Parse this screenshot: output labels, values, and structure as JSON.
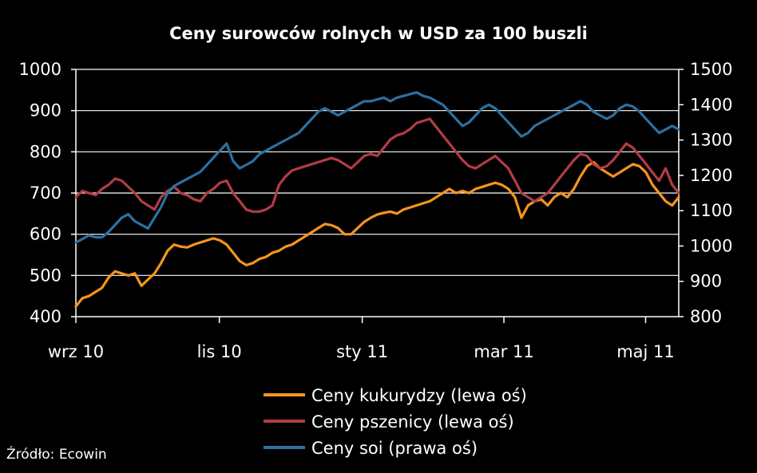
{
  "chart_data": {
    "type": "line",
    "title": "Ceny surowców rolnych w USD za 100 buszli",
    "x_ticks": [
      "wrz 10",
      "lis 10",
      "sty 11",
      "mar 11",
      "maj 11"
    ],
    "left_ylim": [
      400,
      1000
    ],
    "left_yticks": [
      "1000",
      "900",
      "800",
      "700",
      "600",
      "500",
      "400"
    ],
    "right_ylim": [
      800,
      1500
    ],
    "right_yticks": [
      "1500",
      "1400",
      "1300",
      "1200",
      "1100",
      "1000",
      "900",
      "800"
    ],
    "grid": true,
    "legend_position": "bottom",
    "series": [
      {
        "name": "Ceny kukurydzy (lewa oś)",
        "axis": "left",
        "color": "#f7941d",
        "values": [
          425,
          445,
          450,
          460,
          470,
          495,
          510,
          505,
          500,
          505,
          475,
          490,
          505,
          530,
          560,
          575,
          570,
          568,
          575,
          580,
          585,
          590,
          585,
          575,
          555,
          535,
          525,
          530,
          540,
          545,
          555,
          560,
          570,
          575,
          585,
          595,
          605,
          615,
          625,
          622,
          615,
          600,
          600,
          615,
          630,
          640,
          648,
          652,
          655,
          650,
          660,
          665,
          670,
          675,
          680,
          690,
          700,
          710,
          700,
          705,
          700,
          710,
          715,
          720,
          725,
          720,
          710,
          690,
          640,
          670,
          680,
          685,
          670,
          690,
          700,
          690,
          710,
          740,
          765,
          775,
          760,
          750,
          740,
          750,
          760,
          770,
          765,
          750,
          720,
          700,
          680,
          670,
          690
        ]
      },
      {
        "name": "Ceny pszenicy (lewa oś)",
        "axis": "left",
        "color": "#b23c46",
        "values": [
          690,
          705,
          700,
          695,
          710,
          720,
          735,
          730,
          715,
          700,
          680,
          670,
          660,
          690,
          705,
          715,
          700,
          695,
          685,
          680,
          700,
          710,
          725,
          730,
          700,
          680,
          660,
          655,
          655,
          660,
          670,
          720,
          740,
          755,
          760,
          765,
          770,
          775,
          780,
          785,
          780,
          770,
          760,
          775,
          790,
          795,
          790,
          810,
          830,
          840,
          845,
          855,
          870,
          875,
          880,
          860,
          840,
          820,
          800,
          780,
          765,
          760,
          770,
          780,
          790,
          775,
          760,
          730,
          700,
          690,
          680,
          690,
          700,
          720,
          740,
          760,
          780,
          795,
          790,
          770,
          760,
          765,
          780,
          800,
          820,
          810,
          790,
          770,
          750,
          730,
          760,
          720,
          700
        ]
      },
      {
        "name": "Ceny soi (prawa oś)",
        "axis": "right",
        "color": "#2e6fa0",
        "values": [
          1010,
          1020,
          1030,
          1025,
          1025,
          1040,
          1060,
          1080,
          1090,
          1070,
          1060,
          1050,
          1080,
          1110,
          1150,
          1170,
          1180,
          1190,
          1200,
          1210,
          1230,
          1250,
          1270,
          1290,
          1240,
          1220,
          1230,
          1240,
          1260,
          1270,
          1280,
          1290,
          1300,
          1310,
          1320,
          1340,
          1360,
          1380,
          1390,
          1380,
          1370,
          1380,
          1390,
          1400,
          1410,
          1410,
          1415,
          1420,
          1410,
          1420,
          1425,
          1430,
          1435,
          1425,
          1420,
          1410,
          1400,
          1380,
          1360,
          1340,
          1350,
          1370,
          1390,
          1400,
          1390,
          1370,
          1350,
          1330,
          1310,
          1320,
          1340,
          1350,
          1360,
          1370,
          1380,
          1390,
          1400,
          1410,
          1400,
          1380,
          1370,
          1360,
          1370,
          1390,
          1400,
          1395,
          1380,
          1360,
          1340,
          1320,
          1330,
          1340,
          1330
        ]
      }
    ],
    "source": "Źródło: Ecowin"
  }
}
